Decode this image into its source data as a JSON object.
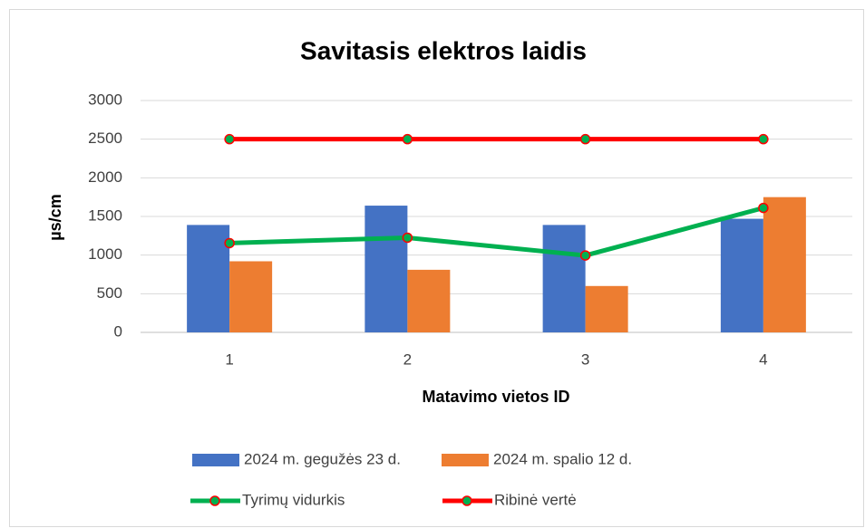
{
  "chart_data": {
    "type": "bar",
    "title": "Savitasis elektros laidis",
    "x_label": "Matavimo vietos ID",
    "y_label": "µs/cm",
    "categories": [
      "1",
      "2",
      "3",
      "4"
    ],
    "series": [
      {
        "name": "2024 m. gegužės 23 d.",
        "type": "bar",
        "color": "#4472c4",
        "values": [
          1390,
          1640,
          1390,
          1470
        ]
      },
      {
        "name": "2024 m. spalio 12 d.",
        "type": "bar",
        "color": "#ed7d31",
        "values": [
          920,
          810,
          600,
          1750
        ]
      },
      {
        "name": "Tyrimų vidurkis",
        "type": "line",
        "color": "#00b050",
        "marker_color": "#00b050",
        "marker_edge": "#ff0000",
        "values": [
          1155,
          1225,
          995,
          1610
        ]
      },
      {
        "name": "Ribinė vertė",
        "type": "line",
        "color": "#ff0000",
        "marker_color": "#00b050",
        "marker_edge": "#ff0000",
        "values": [
          2500,
          2500,
          2500,
          2500
        ]
      }
    ],
    "ylim": [
      0,
      3000
    ],
    "yticks": [
      0,
      500,
      1000,
      1500,
      2000,
      2500,
      3000
    ],
    "grid": true,
    "legend": "bottom"
  }
}
